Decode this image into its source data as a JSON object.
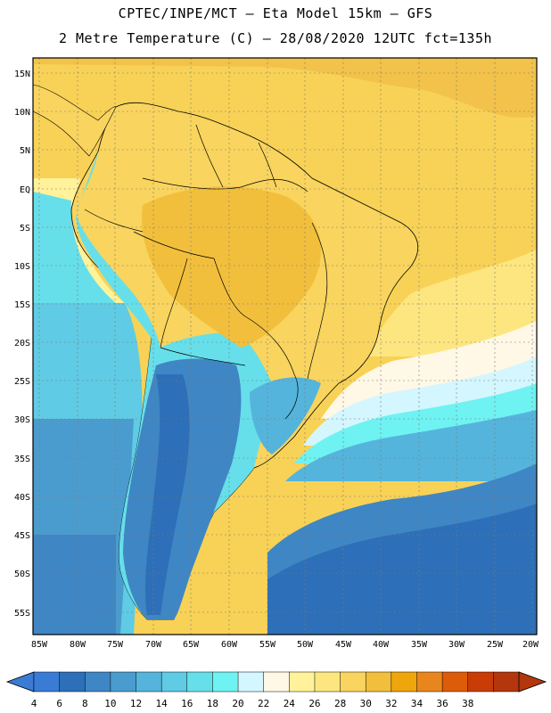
{
  "header": {
    "line1": "CPTEC/INPE/MCT –  Eta Model 15km – GFS",
    "line2": "2 Metre Temperature (C) – 28/08/2020 12UTC fct=135h"
  },
  "map": {
    "region": "South America",
    "variable": "2 Metre Temperature",
    "units": "C",
    "lat_labels": [
      "15N",
      "10N",
      "5N",
      "EQ",
      "5S",
      "10S",
      "15S",
      "20S",
      "25S",
      "30S",
      "35S",
      "40S",
      "45S",
      "50S",
      "55S"
    ],
    "lon_labels": [
      "85W",
      "80W",
      "75W",
      "70W",
      "65W",
      "60W",
      "55W",
      "50W",
      "45W",
      "40W",
      "35W",
      "30W",
      "25W",
      "20W"
    ]
  },
  "colorbar": {
    "labels": [
      "4",
      "6",
      "8",
      "10",
      "12",
      "14",
      "16",
      "18",
      "20",
      "22",
      "24",
      "26",
      "28",
      "30",
      "32",
      "34",
      "36",
      "38"
    ],
    "colors": [
      "#3a7bd5",
      "#2d6fb8",
      "#3f86c4",
      "#4a9ccf",
      "#55b4dc",
      "#5fcbe4",
      "#66dfea",
      "#6ff2f2",
      "#d4f6ff",
      "#fff8e6",
      "#fff29a",
      "#fde680",
      "#f9d45e",
      "#f2bf3c",
      "#efa60c",
      "#e8861d",
      "#dd5c0a",
      "#c93c06",
      "#b3360d"
    ]
  }
}
